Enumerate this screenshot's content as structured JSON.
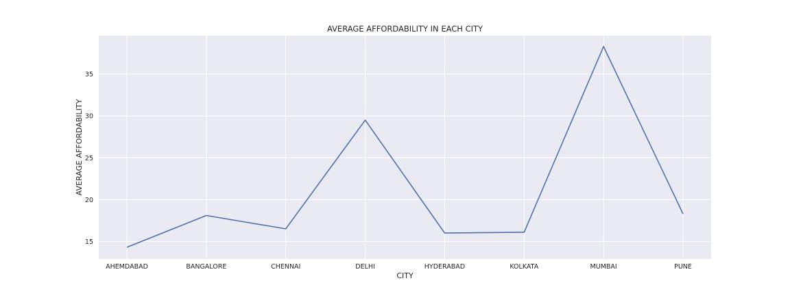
{
  "chart_data": {
    "type": "line",
    "title": "AVERAGE AFFORDABILITY IN EACH CITY",
    "xlabel": "CITY",
    "ylabel": "AVERAGE AFFORDABILITY",
    "categories": [
      "AHEMDABAD",
      "BANGALORE",
      "CHENNAI",
      "DELHI",
      "HYDERABAD",
      "KOLKATA",
      "MUMBAI",
      "PUNE"
    ],
    "series": [
      {
        "values": [
          14.3,
          18.1,
          16.5,
          29.5,
          16.0,
          16.1,
          38.3,
          18.3
        ]
      }
    ],
    "ylim": [
      12.9,
      39.6
    ],
    "yticks": [
      15,
      20,
      25,
      30,
      35
    ],
    "grid": true,
    "colors": {
      "line": "#4c72b0",
      "plot_bg": "#eaeaf2",
      "grid": "#ffffff"
    }
  }
}
